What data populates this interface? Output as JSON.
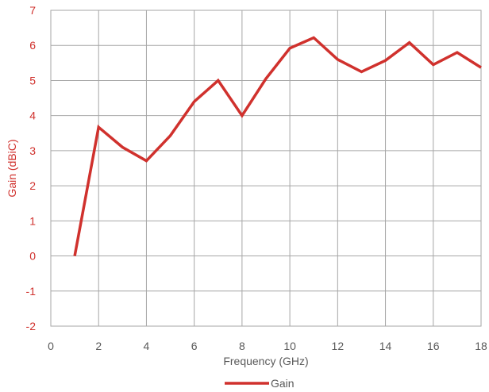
{
  "chart_data": {
    "type": "line",
    "title": "",
    "xlabel": "Frequency (GHz)",
    "ylabel": "Gain (dBiC)",
    "xlim": [
      0,
      18
    ],
    "ylim": [
      -2,
      7
    ],
    "x_ticks": [
      "0",
      "2",
      "4",
      "6",
      "8",
      "10",
      "12",
      "14",
      "16",
      "18"
    ],
    "y_ticks": [
      "7",
      "6",
      "5",
      "4",
      "3",
      "2",
      "1",
      "0",
      "-1",
      "-2"
    ],
    "grid": true,
    "legend_position": "bottom",
    "series": [
      {
        "name": "Gain",
        "color": "#d0312d",
        "x": [
          1,
          2,
          3,
          4,
          5,
          6,
          7,
          8,
          9,
          10,
          11,
          12,
          13,
          14,
          15,
          16,
          17,
          18
        ],
        "y": [
          0,
          3.67,
          3.1,
          2.71,
          3.43,
          4.4,
          5.0,
          4.0,
          5.05,
          5.92,
          6.22,
          5.6,
          5.25,
          5.57,
          6.08,
          5.45,
          5.8,
          5.37
        ]
      }
    ],
    "colors": {
      "y_axis_text": "#d0312d",
      "x_axis_text": "#595959",
      "grid": "#a6a6a6"
    }
  }
}
